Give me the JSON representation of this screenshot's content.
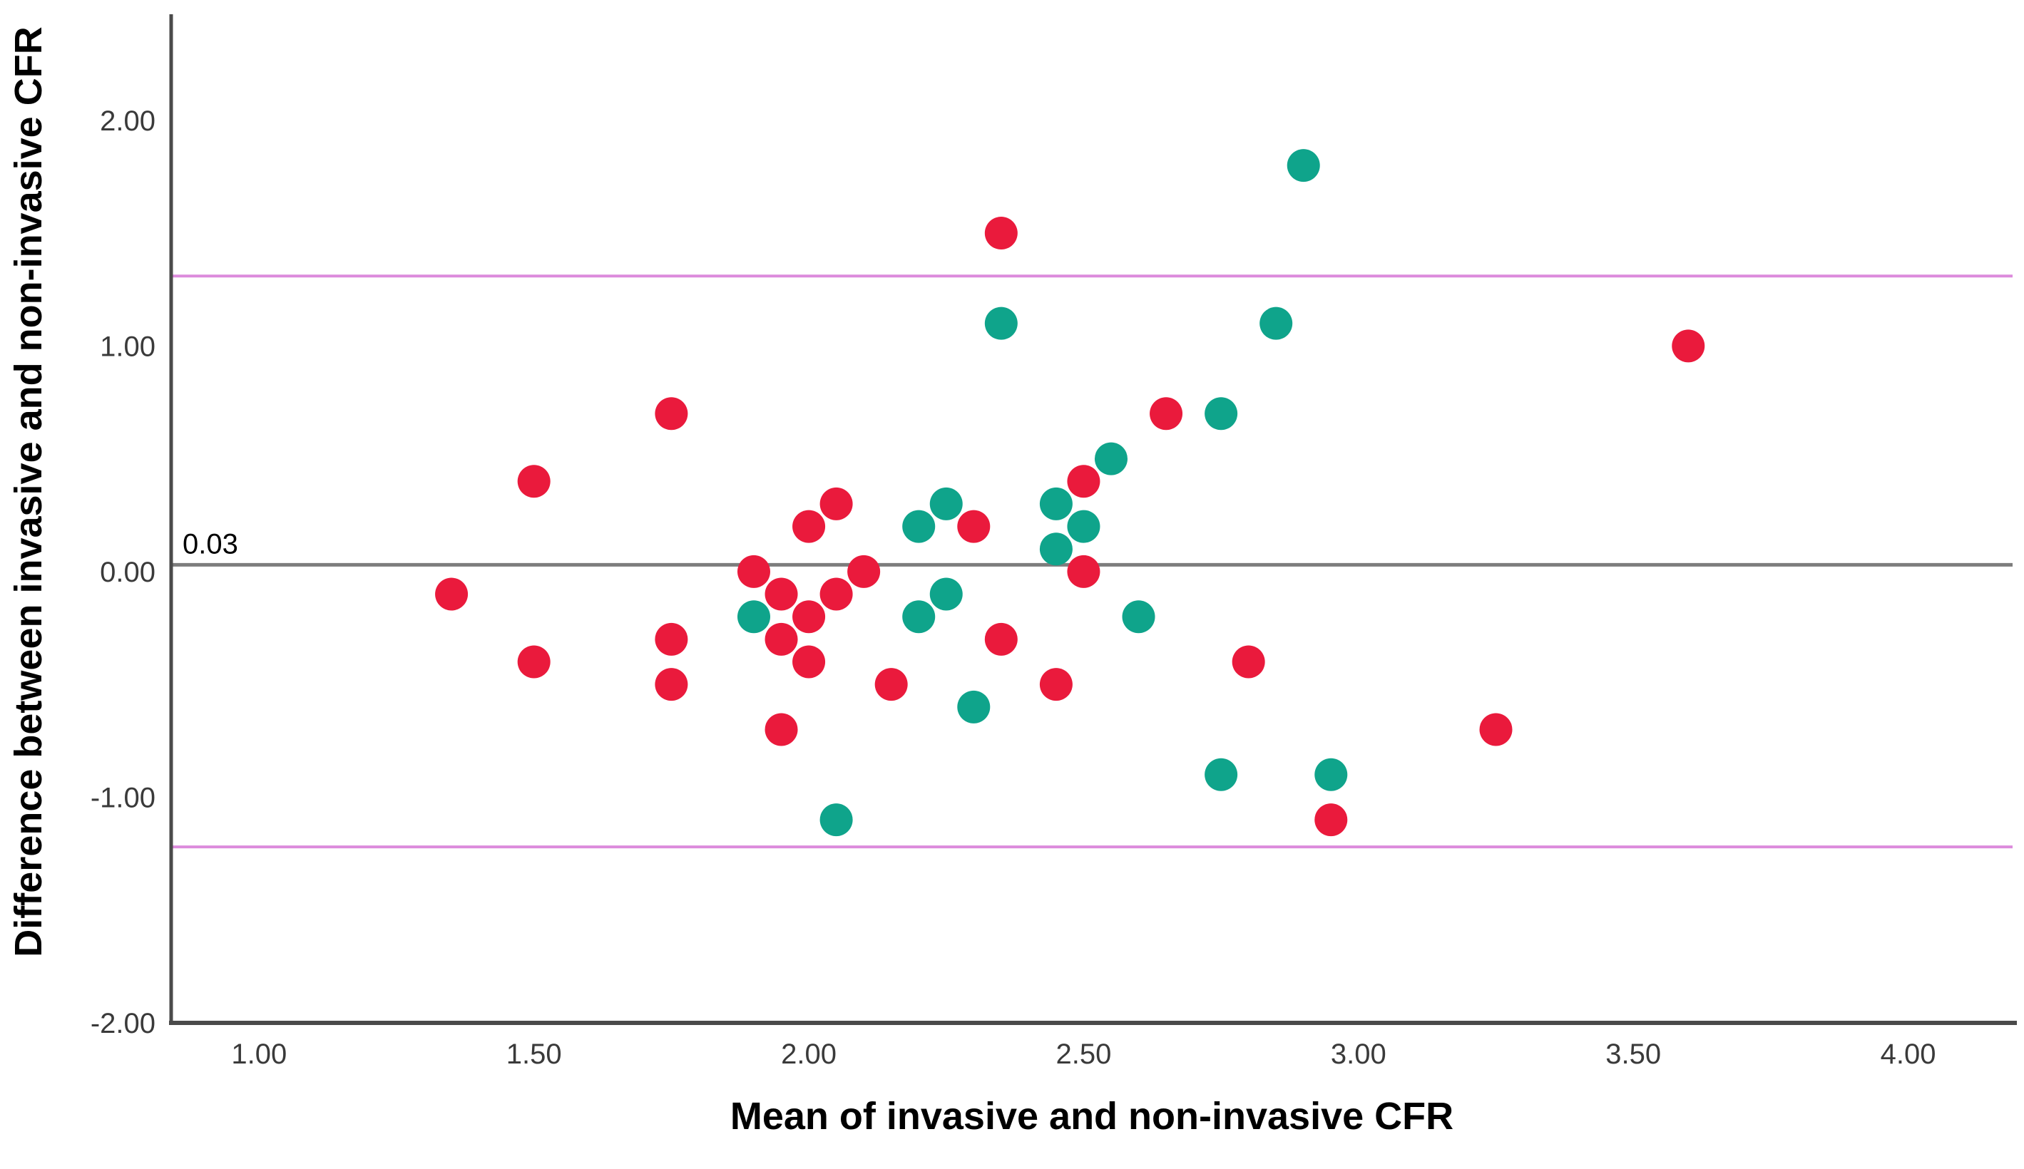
{
  "chart_data": {
    "type": "scatter",
    "title": "",
    "xlabel": "Mean of invasive and non-invasive CFR",
    "ylabel": "Difference between invasive and non-invasive CFR",
    "xlim": [
      0.84,
      4.19
    ],
    "ylim": [
      -2.0,
      2.47
    ],
    "grid": false,
    "legend_position": "none",
    "x_ticks": [
      1.0,
      1.5,
      2.0,
      2.5,
      3.0,
      3.5,
      4.0
    ],
    "x_tick_labels": [
      "1.00",
      "1.50",
      "2.00",
      "2.50",
      "3.00",
      "3.50",
      "4.00"
    ],
    "y_ticks": [
      2.0,
      1.0,
      0.0,
      -1.0,
      -2.0
    ],
    "y_tick_labels": [
      "2.00",
      "1.00",
      "0.00",
      "-1.00",
      "-2.00"
    ],
    "reference_lines": [
      {
        "name": "mean-line",
        "value": 0.03,
        "label": "0.03",
        "color": "#7d7d7d",
        "width": 5
      },
      {
        "name": "upper-loa-line",
        "value": 1.31,
        "label": "",
        "color": "#dc8bdc",
        "width": 4
      },
      {
        "name": "lower-loa-line",
        "value": -1.22,
        "label": "",
        "color": "#dc8bdc",
        "width": 4
      }
    ],
    "axis_color": "#4a4a4a",
    "marker_radius": 23,
    "series": [
      {
        "name": "red-group",
        "color": "#ea1a3c",
        "points": [
          [
            1.35,
            -0.1
          ],
          [
            1.5,
            0.4
          ],
          [
            1.5,
            -0.4
          ],
          [
            1.75,
            0.7
          ],
          [
            1.75,
            -0.3
          ],
          [
            1.75,
            -0.5
          ],
          [
            1.9,
            0.0
          ],
          [
            1.95,
            -0.1
          ],
          [
            1.95,
            -0.3
          ],
          [
            1.95,
            -0.7
          ],
          [
            2.0,
            0.2
          ],
          [
            2.0,
            -0.2
          ],
          [
            2.0,
            -0.4
          ],
          [
            2.05,
            0.3
          ],
          [
            2.05,
            -0.1
          ],
          [
            2.1,
            0.0
          ],
          [
            2.15,
            -0.5
          ],
          [
            2.3,
            0.2
          ],
          [
            2.35,
            1.5
          ],
          [
            2.35,
            -0.3
          ],
          [
            2.45,
            -0.5
          ],
          [
            2.5,
            0.4
          ],
          [
            2.5,
            0.0
          ],
          [
            2.65,
            0.7
          ],
          [
            2.8,
            -0.4
          ],
          [
            2.95,
            -1.1
          ],
          [
            3.25,
            -0.7
          ],
          [
            3.6,
            1.0
          ]
        ]
      },
      {
        "name": "teal-group",
        "color": "#0fa48b",
        "points": [
          [
            1.9,
            -0.2
          ],
          [
            2.05,
            -1.1
          ],
          [
            2.2,
            0.2
          ],
          [
            2.2,
            -0.2
          ],
          [
            2.25,
            0.3
          ],
          [
            2.25,
            -0.1
          ],
          [
            2.3,
            -0.6
          ],
          [
            2.35,
            1.1
          ],
          [
            2.45,
            0.3
          ],
          [
            2.45,
            0.1
          ],
          [
            2.5,
            0.2
          ],
          [
            2.55,
            0.5
          ],
          [
            2.6,
            -0.2
          ],
          [
            2.75,
            0.7
          ],
          [
            2.75,
            -0.9
          ],
          [
            2.85,
            1.1
          ],
          [
            2.9,
            1.8
          ],
          [
            2.95,
            -0.9
          ]
        ]
      }
    ]
  }
}
